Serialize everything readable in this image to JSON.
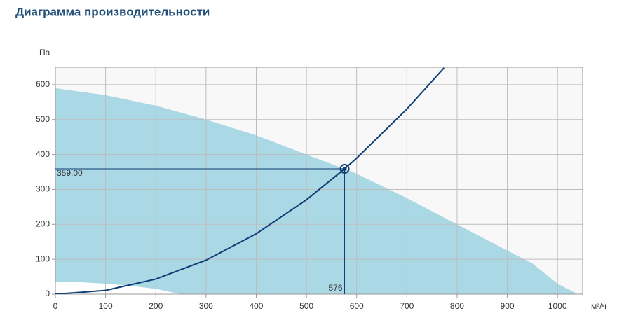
{
  "chart_data": {
    "type": "area",
    "title": "Диаграмма производительности",
    "ylabel": "Па",
    "xlabel": "м³/ч",
    "xlim": [
      0,
      1050
    ],
    "ylim": [
      0,
      650
    ],
    "xticks": [
      0,
      100,
      200,
      300,
      400,
      500,
      600,
      700,
      800,
      900,
      1000
    ],
    "yticks": [
      0,
      100,
      200,
      300,
      400,
      500,
      600
    ],
    "grid": true,
    "series": [
      {
        "role": "max",
        "color": "#abd8e5",
        "x": [
          0,
          100,
          200,
          300,
          400,
          500,
          600,
          700,
          800,
          900,
          950,
          1000,
          1040
        ],
        "values": [
          590,
          570,
          540,
          500,
          455,
          400,
          345,
          275,
          200,
          125,
          88,
          30,
          0
        ]
      },
      {
        "role": "min",
        "color": "#ffffff",
        "x": [
          0,
          50,
          100,
          150,
          200,
          250
        ],
        "values": [
          35,
          34,
          30,
          24,
          15,
          0
        ]
      },
      {
        "role": "system",
        "color": "#0c3d75",
        "x": [
          0,
          100,
          200,
          300,
          400,
          500,
          576,
          600,
          700,
          774
        ],
        "values": [
          0,
          10.8,
          43.3,
          97.4,
          173.1,
          270.5,
          359,
          389.5,
          530.2,
          648.2
        ]
      }
    ],
    "operating_point": {
      "x": 576,
      "y": 359,
      "x_label": "576",
      "y_label": "359.00"
    }
  }
}
